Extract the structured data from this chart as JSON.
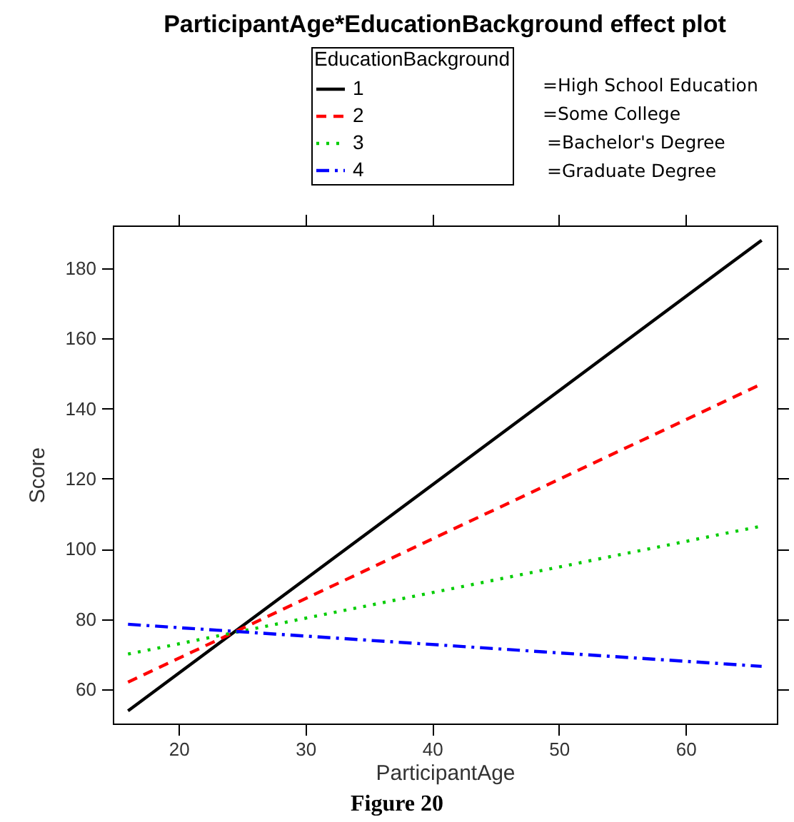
{
  "chart_data": {
    "type": "line",
    "title": "ParticipantAge*EducationBackground effect plot",
    "xlabel": "ParticipantAge",
    "ylabel": "Score",
    "legend_title": "EducationBackground",
    "x": [
      16,
      66
    ],
    "series": [
      {
        "name": "1",
        "color": "#000000",
        "line_style": "solid",
        "values": [
          53.8,
          188
        ]
      },
      {
        "name": "2",
        "color": "#ff0000",
        "line_style": "dashed",
        "values": [
          62,
          147
        ]
      },
      {
        "name": "3",
        "color": "#00cc00",
        "line_style": "dotted",
        "values": [
          70,
          106.5
        ]
      },
      {
        "name": "4",
        "color": "#0000ff",
        "line_style": "dashdot",
        "values": [
          78.5,
          66.5
        ]
      }
    ],
    "xlim": [
      14.8,
      67.2
    ],
    "ylim": [
      50.2,
      192.2
    ],
    "xticks": [
      20,
      30,
      40,
      50,
      60
    ],
    "yticks": [
      60,
      80,
      100,
      120,
      140,
      160,
      180
    ],
    "grid": false,
    "legend": "top",
    "marker": "none",
    "annotations": [
      "=High School Education",
      "=Some College",
      "=Bachelor's Degree",
      "=Graduate Degree",
      "Figure 20"
    ]
  }
}
